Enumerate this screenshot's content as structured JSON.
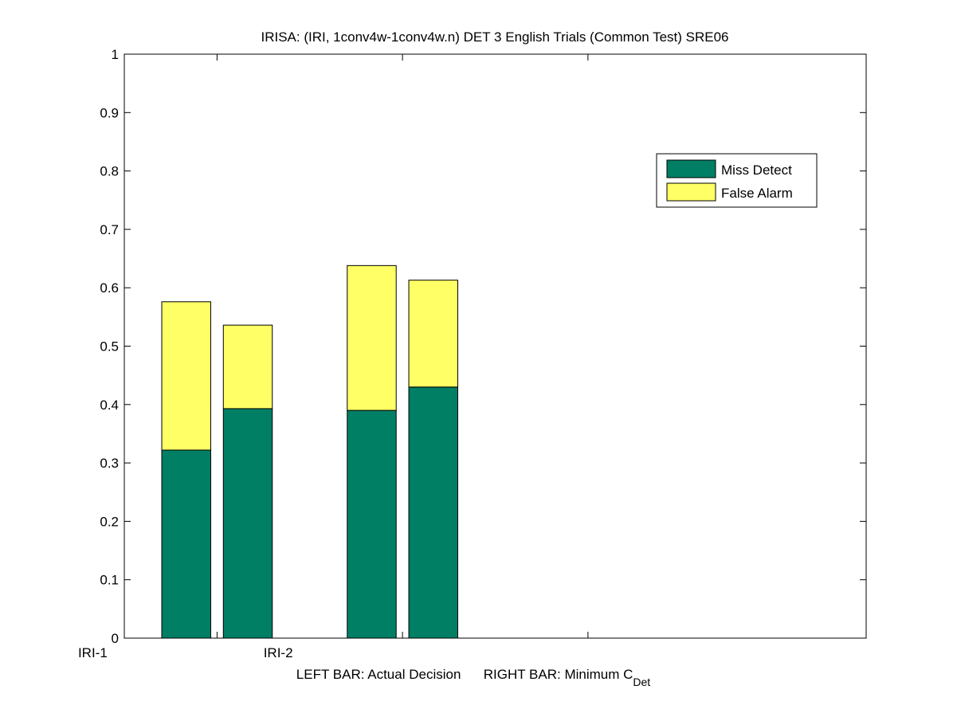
{
  "chart_data": {
    "type": "bar",
    "stacked": true,
    "title": "IRISA: (IRI, 1conv4w-1conv4w.n) DET 3 English Trials (Common Test) SRE06",
    "xlabel": {
      "left": "LEFT BAR: Actual Decision",
      "right": "RIGHT BAR: Minimum C",
      "right_subscript": "Det"
    },
    "ylabel": "",
    "ylim": [
      0,
      1
    ],
    "yticks": [
      0,
      0.1,
      0.2,
      0.3,
      0.4,
      0.5,
      0.6,
      0.7,
      0.8,
      0.9,
      1
    ],
    "ytick_labels": [
      "0",
      "0.1",
      "0.2",
      "0.3",
      "0.4",
      "0.5",
      "0.6",
      "0.7",
      "0.8",
      "0.9",
      "1"
    ],
    "xlim": [
      0.5,
      4.5
    ],
    "xticks": [
      1,
      2,
      3
    ],
    "categories": [
      "IRI-1",
      "IRI-2",
      ""
    ],
    "bar_groups": [
      "Actual Decision",
      "Minimum C_Det"
    ],
    "series": [
      {
        "name": "Miss Detect",
        "color": "#007f65",
        "values": [
          [
            0.322,
            0.393
          ],
          [
            0.39,
            0.43
          ]
        ]
      },
      {
        "name": "False Alarm",
        "color": "#ffff66",
        "values": [
          [
            0.254,
            0.143
          ],
          [
            0.248,
            0.183
          ]
        ]
      }
    ],
    "totals": [
      [
        0.576,
        0.536
      ],
      [
        0.638,
        0.613
      ]
    ],
    "grid": false,
    "legend": {
      "placement": "top-right"
    }
  }
}
